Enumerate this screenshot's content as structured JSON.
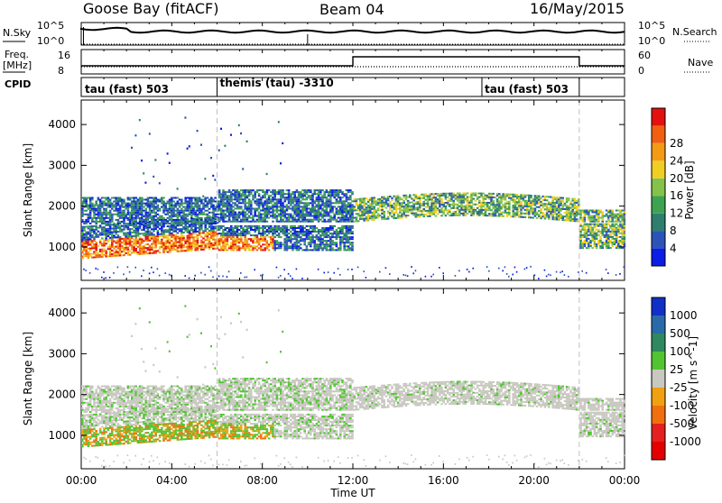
{
  "header": {
    "station": "Goose Bay (fitACF)",
    "beam": "Beam 04",
    "date": "16/May/2015"
  },
  "left_labels": {
    "nsky": "N.Sky",
    "freq": "Freq.",
    "mhz": "[MHz]",
    "cpid": "CPID"
  },
  "right_labels": {
    "nsearch": "N.Search",
    "nave": "Nave"
  },
  "nsky_ticks": [
    "10^5",
    "10^0"
  ],
  "freq_ticks": [
    "16",
    "8"
  ],
  "nave_ticks": [
    "60",
    "0"
  ],
  "cpid_labels": [
    {
      "text": "tau (fast) 503",
      "t": 0.0
    },
    {
      "text": "themis (tau) -3310",
      "t": 6.0
    },
    {
      "text": "tau (fast) 503",
      "t": 17.7
    }
  ],
  "colors": {
    "gray": "#c8c8c0",
    "dashed": "#c0c0c0"
  },
  "chart_data": [
    {
      "type": "heatmap",
      "panel": "power",
      "ylabel": "Slant Range [km]",
      "xlabel": "",
      "ylim": [
        180,
        4600
      ],
      "yticks": [
        "1000",
        "2000",
        "3000",
        "4000"
      ],
      "colorbar": {
        "label": "Power [dB]",
        "ticks": [
          "4",
          "8",
          "12",
          "16",
          "20",
          "24",
          "28"
        ],
        "colors": [
          "#0a1ee6",
          "#2c54b8",
          "#2e7f6e",
          "#3ea350",
          "#84c24a",
          "#f0ce23",
          "#f59a14",
          "#f06010",
          "#e41010"
        ]
      }
    },
    {
      "type": "heatmap",
      "panel": "velocity",
      "ylabel": "Slant Range [km]",
      "xlabel": "Time UT",
      "ylim": [
        180,
        4600
      ],
      "yticks": [
        "1000",
        "2000",
        "3000",
        "4000"
      ],
      "xticks": [
        "00:00",
        "04:00",
        "08:00",
        "12:00",
        "16:00",
        "20:00",
        "00:00"
      ],
      "colorbar": {
        "label": "Velocity [m s^-1]",
        "ticks": [
          "1000",
          "500",
          "100",
          "25",
          "-25",
          "-100",
          "-500",
          "-1000"
        ],
        "colors": [
          "#1030c8",
          "#2a6aa8",
          "#2e8a5e",
          "#52c432",
          "#c8c8c0",
          "#f0a010",
          "#f07010",
          "#e42020",
          "#e40000"
        ]
      }
    }
  ]
}
